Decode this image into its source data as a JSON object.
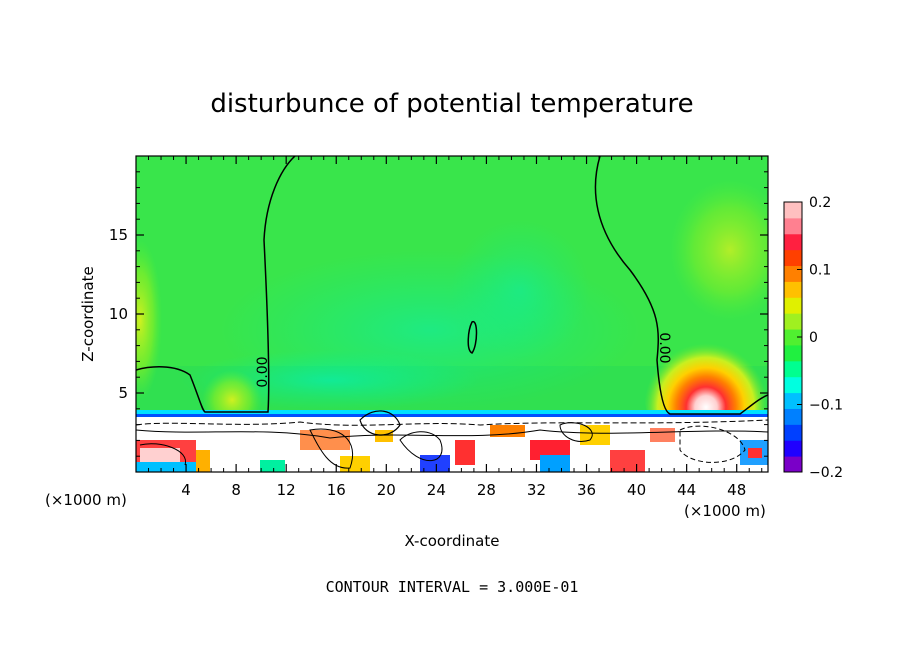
{
  "chart_data": {
    "type": "heatmap",
    "title": "disturbunce of potential temperature",
    "xlabel": "X-coordinate",
    "ylabel": "Z-coordinate",
    "x_unit_left": "(×1000 m)",
    "x_unit_right": "(×1000 m)",
    "xlim": [
      0,
      50.5
    ],
    "ylim": [
      0,
      20
    ],
    "xticks": [
      4,
      8,
      12,
      16,
      20,
      24,
      28,
      32,
      36,
      40,
      44,
      48
    ],
    "yticks": [
      5,
      10,
      15
    ],
    "contour_label": "0.00",
    "contour_interval_note": "CONTOUR INTERVAL = 3.000E-01",
    "colorbar": {
      "range": [
        -0.2,
        0.2
      ],
      "tick_values": [
        0.2,
        0.1,
        0,
        -0.1,
        -0.2
      ],
      "tick_labels": [
        "0.2",
        "0.1",
        "0",
        "-0.1",
        "-0.2"
      ],
      "colors": [
        "#7a00c8",
        "#2000ff",
        "#0040ff",
        "#0080ff",
        "#00c0ff",
        "#00ffe0",
        "#00ff90",
        "#20f040",
        "#50f030",
        "#a0f020",
        "#e0f000",
        "#ffc000",
        "#ff8000",
        "#ff4000",
        "#ff2040",
        "#ff8090",
        "#ffc0c0"
      ]
    },
    "fields": {
      "background_value": 0.02,
      "warm_anomaly": {
        "x_center": 44.5,
        "z_center": 4.5,
        "peak": 0.2
      },
      "cool_band": {
        "z_range": [
          3.5,
          4.2
        ],
        "value": -0.1
      },
      "weak_cool_region": {
        "x_range": [
          16,
          40
        ],
        "z_range": [
          4,
          12
        ],
        "value": -0.03
      }
    }
  }
}
